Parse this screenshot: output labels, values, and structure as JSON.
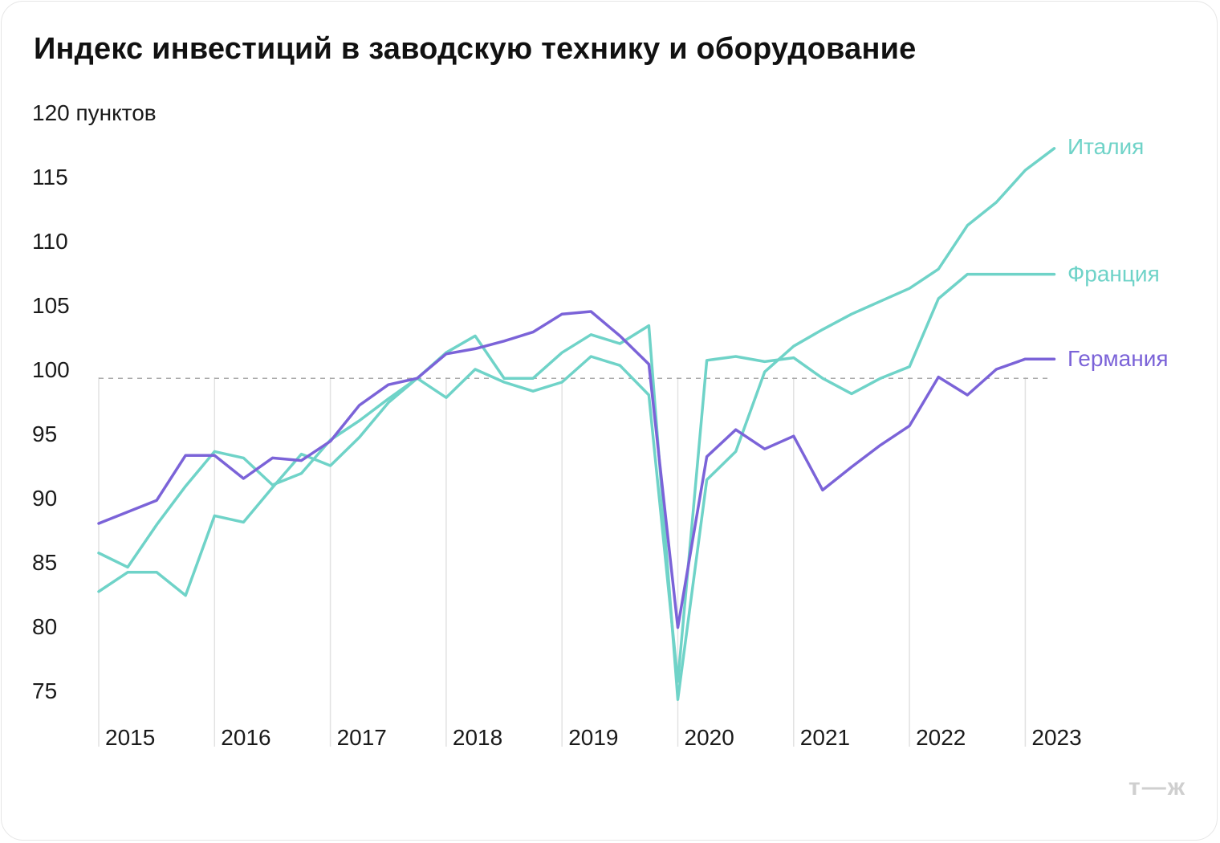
{
  "chart_data": {
    "type": "line",
    "title": "Индекс инвестиций в заводскую технику и оборудование",
    "ylabel_unit": "пунктов",
    "ylim": [
      75,
      120
    ],
    "yticks": [
      {
        "value": 120,
        "label": "120 пунктов"
      },
      {
        "value": 115,
        "label": "115"
      },
      {
        "value": 110,
        "label": "110"
      },
      {
        "value": 105,
        "label": "105"
      },
      {
        "value": 100,
        "label": "100"
      },
      {
        "value": 95,
        "label": "95"
      },
      {
        "value": 90,
        "label": "90"
      },
      {
        "value": 85,
        "label": "85"
      },
      {
        "value": 80,
        "label": "80"
      },
      {
        "value": 75,
        "label": "75"
      }
    ],
    "xlim": [
      2015,
      2024
    ],
    "xticks": [
      "2015",
      "2016",
      "2017",
      "2018",
      "2019",
      "2020",
      "2021",
      "2022",
      "2023"
    ],
    "reference_line": 99.3,
    "series": [
      {
        "name": "Италия",
        "color": "#6fd3c8",
        "x": [
          2015.0,
          2015.25,
          2015.5,
          2015.75,
          2016.0,
          2016.25,
          2016.5,
          2016.75,
          2017.0,
          2017.25,
          2017.5,
          2017.75,
          2018.0,
          2018.25,
          2018.5,
          2018.75,
          2019.0,
          2019.25,
          2019.5,
          2019.75,
          2020.0,
          2020.25,
          2020.5,
          2020.75,
          2021.0,
          2021.25,
          2021.5,
          2021.75,
          2022.0,
          2022.25,
          2022.5,
          2022.75,
          2023.0,
          2023.25
        ],
        "values": [
          82.7,
          84.2,
          84.2,
          82.4,
          88.6,
          88.1,
          90.8,
          93.4,
          92.5,
          94.7,
          97.4,
          99.3,
          101.3,
          102.6,
          99.3,
          99.3,
          101.3,
          102.7,
          102.0,
          103.4,
          74.3,
          91.4,
          93.6,
          99.8,
          101.8,
          103.1,
          104.3,
          105.3,
          106.3,
          107.8,
          111.2,
          113.0,
          115.5,
          117.2
        ]
      },
      {
        "name": "Франция",
        "color": "#6fd3c8",
        "x": [
          2015.0,
          2015.25,
          2015.5,
          2015.75,
          2016.0,
          2016.25,
          2016.5,
          2016.75,
          2017.0,
          2017.25,
          2017.5,
          2017.75,
          2018.0,
          2018.25,
          2018.5,
          2018.75,
          2019.0,
          2019.25,
          2019.5,
          2019.75,
          2020.0,
          2020.25,
          2020.5,
          2020.75,
          2021.0,
          2021.25,
          2021.5,
          2021.75,
          2022.0,
          2022.25,
          2022.5,
          2022.75,
          2023.0,
          2023.25
        ],
        "values": [
          85.7,
          84.6,
          87.9,
          90.9,
          93.6,
          93.1,
          91.0,
          91.9,
          94.5,
          96.0,
          97.7,
          99.3,
          97.8,
          100.0,
          99.0,
          98.3,
          99.0,
          101.0,
          100.3,
          98.0,
          75.7,
          100.7,
          101.0,
          100.6,
          100.9,
          99.3,
          98.1,
          99.3,
          100.2,
          105.5,
          107.4,
          107.4,
          107.4,
          107.4
        ]
      },
      {
        "name": "Германия",
        "color": "#7b63d8",
        "x": [
          2015.0,
          2015.25,
          2015.5,
          2015.75,
          2016.0,
          2016.25,
          2016.5,
          2016.75,
          2017.0,
          2017.25,
          2017.5,
          2017.75,
          2018.0,
          2018.25,
          2018.5,
          2018.75,
          2019.0,
          2019.25,
          2019.5,
          2019.75,
          2020.0,
          2020.25,
          2020.5,
          2020.75,
          2021.0,
          2021.25,
          2021.5,
          2021.75,
          2022.0,
          2022.25,
          2022.5,
          2022.75,
          2023.0,
          2023.25
        ],
        "values": [
          88.0,
          88.9,
          89.8,
          93.3,
          93.3,
          91.5,
          93.1,
          92.9,
          94.4,
          97.2,
          98.8,
          99.3,
          101.2,
          101.6,
          102.2,
          102.9,
          104.3,
          104.5,
          102.6,
          100.4,
          79.9,
          93.2,
          95.3,
          93.8,
          94.8,
          90.6,
          92.4,
          94.1,
          95.6,
          99.4,
          98.0,
          100.0,
          100.8,
          100.8
        ]
      }
    ]
  },
  "brand": {
    "logo_text": "т—ж"
  }
}
